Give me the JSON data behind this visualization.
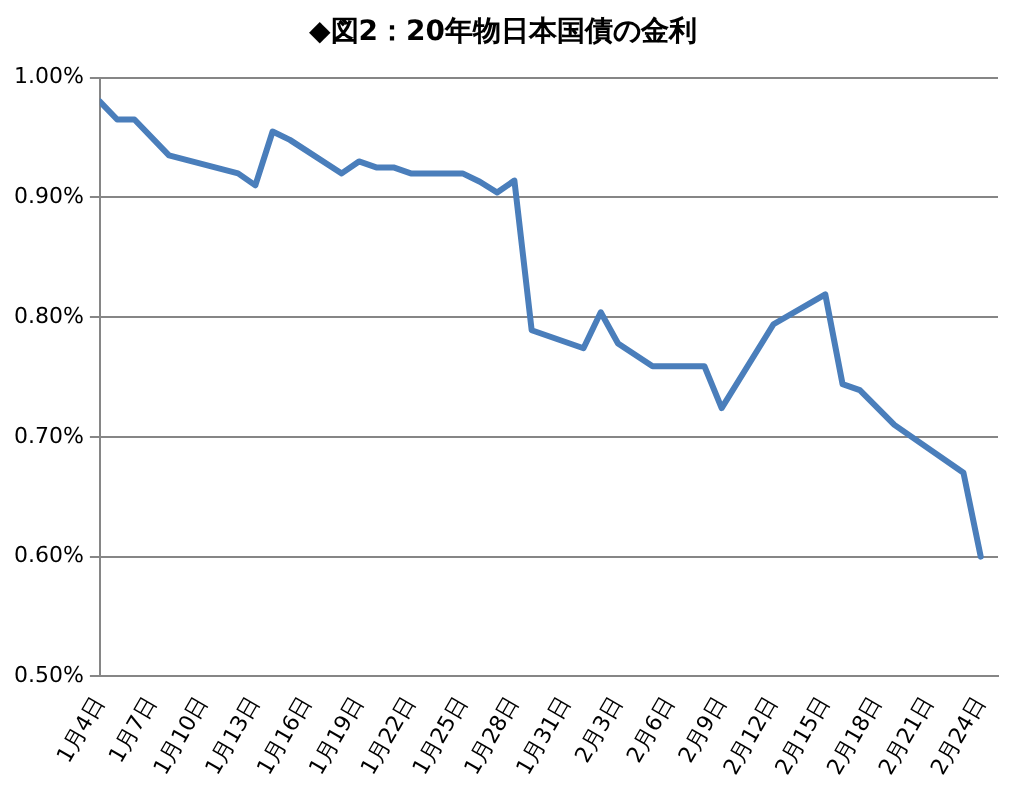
{
  "chart_data": {
    "type": "line",
    "title": "◆図2：20年物日本国債の金利",
    "series": [
      {
        "color": "#4a7ebb",
        "x": [
          "--01-04",
          "--01-05",
          "--01-06",
          "--01-08",
          "--01-12",
          "--01-13",
          "--01-14",
          "--01-15",
          "--01-18",
          "--01-19",
          "--01-20",
          "--01-21",
          "--01-22",
          "--01-25",
          "--01-26",
          "--01-27",
          "--01-28",
          "--01-29",
          "--02-01",
          "--02-02",
          "--02-03",
          "--02-05",
          "--02-08",
          "--02-09",
          "--02-12",
          "--02-15",
          "--02-16",
          "--02-17",
          "--02-19",
          "--02-23",
          "--02-24"
        ],
        "values": [
          0.98,
          0.965,
          0.965,
          0.935,
          0.92,
          0.91,
          0.955,
          0.948,
          0.92,
          0.93,
          0.925,
          0.925,
          0.92,
          0.92,
          0.913,
          0.904,
          0.914,
          0.789,
          0.774,
          0.804,
          0.778,
          0.759,
          0.759,
          0.724,
          0.794,
          0.819,
          0.744,
          0.739,
          0.71,
          0.67,
          0.6
        ]
      }
    ],
    "xlim": [
      "--01-04",
      "--02-25"
    ],
    "xticks": [
      {
        "value": "--01-04",
        "label": "1月4日"
      },
      {
        "value": "--01-07",
        "label": "1月7日"
      },
      {
        "value": "--01-10",
        "label": "1月10日"
      },
      {
        "value": "--01-13",
        "label": "1月13日"
      },
      {
        "value": "--01-16",
        "label": "1月16日"
      },
      {
        "value": "--01-19",
        "label": "1月19日"
      },
      {
        "value": "--01-22",
        "label": "1月22日"
      },
      {
        "value": "--01-25",
        "label": "1月25日"
      },
      {
        "value": "--01-28",
        "label": "1月28日"
      },
      {
        "value": "--01-31",
        "label": "1月31日"
      },
      {
        "value": "--02-03",
        "label": "2月3日"
      },
      {
        "value": "--02-06",
        "label": "2月6日"
      },
      {
        "value": "--02-09",
        "label": "2月9日"
      },
      {
        "value": "--02-12",
        "label": "2月12日"
      },
      {
        "value": "--02-15",
        "label": "2月15日"
      },
      {
        "value": "--02-18",
        "label": "2月18日"
      },
      {
        "value": "--02-21",
        "label": "2月21日"
      },
      {
        "value": "--02-24",
        "label": "2月24日"
      }
    ],
    "ylim": [
      0.5,
      1.0
    ],
    "yticks": [
      {
        "value": 0.5,
        "label": "0.50%"
      },
      {
        "value": 0.6,
        "label": "0.60%"
      },
      {
        "value": 0.7,
        "label": "0.70%"
      },
      {
        "value": 0.8,
        "label": "0.80%"
      },
      {
        "value": 0.9,
        "label": "0.90%"
      },
      {
        "value": 1.0,
        "label": "1.00%"
      }
    ],
    "grid": "y",
    "legend": false,
    "marker": "none",
    "line_style": "solid"
  }
}
